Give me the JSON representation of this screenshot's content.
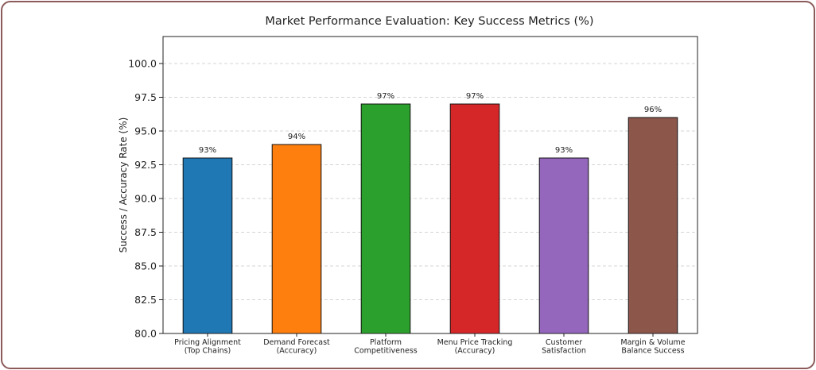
{
  "chart_data": {
    "type": "bar",
    "title": "Market Performance Evaluation: Key Success Metrics (%)",
    "xlabel": "",
    "ylabel": "Success / Accuracy Rate (%)",
    "ylim": [
      80,
      102
    ],
    "yticks": [
      "80.0",
      "82.5",
      "85.0",
      "87.5",
      "90.0",
      "92.5",
      "95.0",
      "97.5",
      "100.0"
    ],
    "grid": "horizontal-dashed",
    "legend": "none",
    "categories": [
      [
        "Pricing Alignment",
        "(Top Chains)"
      ],
      [
        "Demand Forecast",
        "(Accuracy)"
      ],
      [
        "Platform",
        "Competitiveness"
      ],
      [
        "Menu Price Tracking",
        "(Accuracy)"
      ],
      [
        "Customer",
        "Satisfaction"
      ],
      [
        "Margin & Volume",
        "Balance Success"
      ]
    ],
    "values": [
      93,
      94,
      97,
      97,
      93,
      96
    ],
    "data_labels": [
      "93%",
      "94%",
      "97%",
      "97%",
      "93%",
      "96%"
    ],
    "colors": [
      "#1f77b4",
      "#ff7f0e",
      "#2ca02c",
      "#d62728",
      "#9467bd",
      "#8c564b"
    ]
  }
}
